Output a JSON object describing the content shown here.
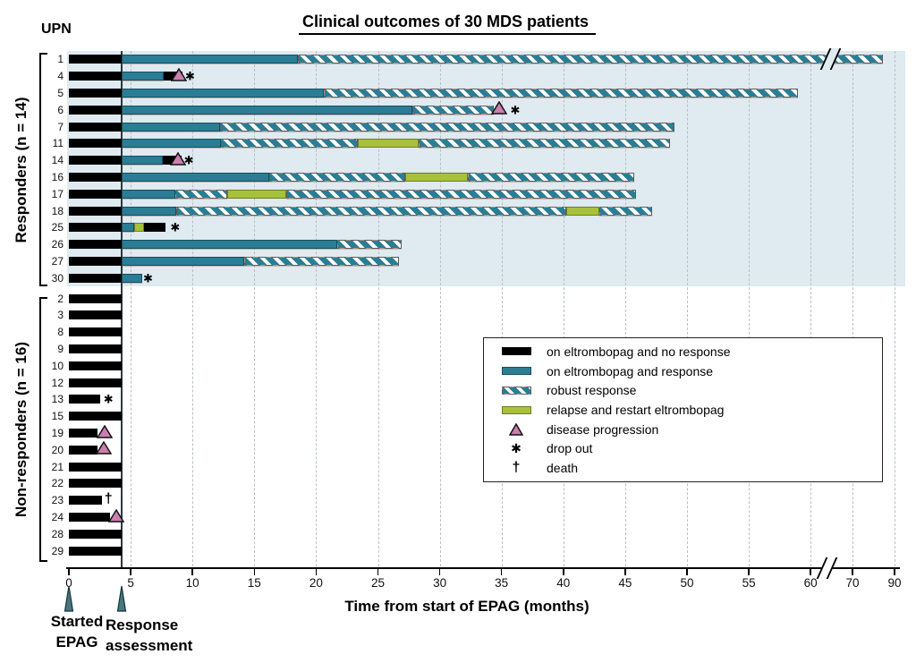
{
  "colors": {
    "teal": "#2a7d94",
    "green": "#a8c13b",
    "pink": "#cb7fae",
    "panel": "#dfeaf1",
    "grid": "#b9bfc5",
    "arrow": "#45787c",
    "black": "#000000"
  },
  "symbols": {
    "star": "✱",
    "dagger": "†"
  },
  "chart_data": {
    "type": "swimmer-timeline",
    "title": "Clinical outcomes of 30 MDS patients",
    "y_axis_header": "UPN",
    "x_axis": {
      "label": "Time from start of EPAG (months)",
      "unit": "months",
      "ticks": [
        0,
        5,
        10,
        15,
        20,
        25,
        30,
        35,
        40,
        45,
        50,
        55,
        60,
        70,
        90
      ],
      "break_between": [
        60,
        70
      ],
      "break_at_month": 61.3,
      "grid": true
    },
    "groups": [
      {
        "label": "Responders (n = 14)",
        "n": 14
      },
      {
        "label": "Non-responders (n = 16)",
        "n": 16
      }
    ],
    "start_marker": {
      "label": "Started EPAG",
      "month": 0
    },
    "event_line": {
      "label": "Response assessment",
      "month": 4.3
    },
    "legend": [
      {
        "swatch": "black-bar",
        "label": "on eltrombopag and no response"
      },
      {
        "swatch": "teal-bar",
        "label": "on eltrombopag and response"
      },
      {
        "swatch": "striped-bar",
        "label": "robust response"
      },
      {
        "swatch": "green-bar",
        "label": "relapse and restart eltrombopag"
      },
      {
        "swatch": "triangle",
        "label": "disease progression"
      },
      {
        "swatch": "star",
        "label": "drop out"
      },
      {
        "swatch": "dagger",
        "label": "death"
      }
    ],
    "patients": [
      {
        "upn": "1",
        "group": 0,
        "segments": [
          {
            "type": "no_response",
            "start": 0,
            "end": 4.3
          },
          {
            "type": "response",
            "start": 4.3,
            "end": 18.5
          },
          {
            "type": "robust",
            "start": 18.5,
            "end": 84.5
          }
        ],
        "markers": [
          {
            "type": "break",
            "month": 61.6
          }
        ]
      },
      {
        "upn": "4",
        "group": 0,
        "segments": [
          {
            "type": "no_response",
            "start": 0,
            "end": 4.3
          },
          {
            "type": "response",
            "start": 4.3,
            "end": 7.7
          },
          {
            "type": "no_response",
            "start": 7.7,
            "end": 9.2
          }
        ],
        "markers": [
          {
            "type": "triangle",
            "month": 8.9
          },
          {
            "type": "star",
            "month": 9.8
          }
        ]
      },
      {
        "upn": "5",
        "group": 0,
        "segments": [
          {
            "type": "no_response",
            "start": 0,
            "end": 4.3
          },
          {
            "type": "response",
            "start": 4.3,
            "end": 20.6
          },
          {
            "type": "robust",
            "start": 20.6,
            "end": 59
          }
        ],
        "markers": []
      },
      {
        "upn": "6",
        "group": 0,
        "segments": [
          {
            "type": "no_response",
            "start": 0,
            "end": 4.3
          },
          {
            "type": "response",
            "start": 4.3,
            "end": 27.8
          },
          {
            "type": "robust",
            "start": 27.8,
            "end": 34.4
          }
        ],
        "markers": [
          {
            "type": "triangle",
            "month": 34.8
          },
          {
            "type": "star",
            "month": 36.1
          }
        ]
      },
      {
        "upn": "7",
        "group": 0,
        "segments": [
          {
            "type": "no_response",
            "start": 0,
            "end": 4.3
          },
          {
            "type": "response",
            "start": 4.3,
            "end": 12.2
          },
          {
            "type": "robust",
            "start": 12.2,
            "end": 49
          }
        ],
        "markers": []
      },
      {
        "upn": "11",
        "group": 0,
        "segments": [
          {
            "type": "no_response",
            "start": 0,
            "end": 4.3
          },
          {
            "type": "response",
            "start": 4.3,
            "end": 12.3
          },
          {
            "type": "robust",
            "start": 12.3,
            "end": 23.4
          },
          {
            "type": "relapse",
            "start": 23.4,
            "end": 28.3
          },
          {
            "type": "robust",
            "start": 28.3,
            "end": 48.6
          }
        ],
        "markers": []
      },
      {
        "upn": "14",
        "group": 0,
        "segments": [
          {
            "type": "no_response",
            "start": 0,
            "end": 4.3
          },
          {
            "type": "response",
            "start": 4.3,
            "end": 7.6
          },
          {
            "type": "no_response",
            "start": 7.6,
            "end": 9.1
          }
        ],
        "markers": [
          {
            "type": "triangle",
            "month": 8.8
          },
          {
            "type": "star",
            "month": 9.7
          }
        ]
      },
      {
        "upn": "16",
        "group": 0,
        "segments": [
          {
            "type": "no_response",
            "start": 0,
            "end": 4.3
          },
          {
            "type": "response",
            "start": 4.3,
            "end": 16.2
          },
          {
            "type": "robust",
            "start": 16.2,
            "end": 27.2
          },
          {
            "type": "relapse",
            "start": 27.2,
            "end": 32.3
          },
          {
            "type": "robust",
            "start": 32.3,
            "end": 45.7
          }
        ],
        "markers": []
      },
      {
        "upn": "17",
        "group": 0,
        "segments": [
          {
            "type": "no_response",
            "start": 0,
            "end": 4.3
          },
          {
            "type": "response",
            "start": 4.3,
            "end": 8.6
          },
          {
            "type": "robust",
            "start": 8.6,
            "end": 12.8
          },
          {
            "type": "relapse",
            "start": 12.8,
            "end": 17.6
          },
          {
            "type": "robust",
            "start": 17.6,
            "end": 45.9
          }
        ],
        "markers": []
      },
      {
        "upn": "18",
        "group": 0,
        "segments": [
          {
            "type": "no_response",
            "start": 0,
            "end": 4.3
          },
          {
            "type": "response",
            "start": 4.3,
            "end": 8.7
          },
          {
            "type": "robust",
            "start": 8.7,
            "end": 40.2
          },
          {
            "type": "relapse",
            "start": 40.2,
            "end": 42.9
          },
          {
            "type": "robust",
            "start": 42.9,
            "end": 47.2
          }
        ],
        "markers": []
      },
      {
        "upn": "25",
        "group": 0,
        "segments": [
          {
            "type": "no_response",
            "start": 0,
            "end": 4.3
          },
          {
            "type": "response",
            "start": 4.3,
            "end": 5.3
          },
          {
            "type": "relapse",
            "start": 5.3,
            "end": 6.1
          },
          {
            "type": "no_response",
            "start": 6.1,
            "end": 7.8
          }
        ],
        "markers": [
          {
            "type": "star",
            "month": 8.6
          }
        ]
      },
      {
        "upn": "26",
        "group": 0,
        "segments": [
          {
            "type": "no_response",
            "start": 0,
            "end": 4.3
          },
          {
            "type": "response",
            "start": 4.3,
            "end": 21.7
          },
          {
            "type": "robust",
            "start": 21.7,
            "end": 26.9
          }
        ],
        "markers": []
      },
      {
        "upn": "27",
        "group": 0,
        "segments": [
          {
            "type": "no_response",
            "start": 0,
            "end": 4.3
          },
          {
            "type": "response",
            "start": 4.3,
            "end": 14.2
          },
          {
            "type": "robust",
            "start": 14.2,
            "end": 26.7
          }
        ],
        "markers": []
      },
      {
        "upn": "30",
        "group": 0,
        "segments": [
          {
            "type": "no_response",
            "start": 0,
            "end": 4.3
          },
          {
            "type": "response",
            "start": 4.3,
            "end": 5.9
          }
        ],
        "markers": [
          {
            "type": "star",
            "month": 6.4
          }
        ]
      },
      {
        "upn": "2",
        "group": 1,
        "segments": [
          {
            "type": "no_response",
            "start": 0,
            "end": 4.3
          }
        ],
        "markers": []
      },
      {
        "upn": "3",
        "group": 1,
        "segments": [
          {
            "type": "no_response",
            "start": 0,
            "end": 4.3
          }
        ],
        "markers": []
      },
      {
        "upn": "8",
        "group": 1,
        "segments": [
          {
            "type": "no_response",
            "start": 0,
            "end": 4.3
          }
        ],
        "markers": []
      },
      {
        "upn": "9",
        "group": 1,
        "segments": [
          {
            "type": "no_response",
            "start": 0,
            "end": 4.3
          }
        ],
        "markers": []
      },
      {
        "upn": "10",
        "group": 1,
        "segments": [
          {
            "type": "no_response",
            "start": 0,
            "end": 4.3
          }
        ],
        "markers": []
      },
      {
        "upn": "12",
        "group": 1,
        "segments": [
          {
            "type": "no_response",
            "start": 0,
            "end": 4.3
          }
        ],
        "markers": []
      },
      {
        "upn": "13",
        "group": 1,
        "segments": [
          {
            "type": "no_response",
            "start": 0,
            "end": 2.5
          }
        ],
        "markers": [
          {
            "type": "star",
            "month": 3.2
          }
        ]
      },
      {
        "upn": "15",
        "group": 1,
        "segments": [
          {
            "type": "no_response",
            "start": 0,
            "end": 4.3
          }
        ],
        "markers": []
      },
      {
        "upn": "19",
        "group": 1,
        "segments": [
          {
            "type": "no_response",
            "start": 0,
            "end": 2.3
          }
        ],
        "markers": [
          {
            "type": "triangle",
            "month": 2.9
          }
        ]
      },
      {
        "upn": "20",
        "group": 1,
        "segments": [
          {
            "type": "no_response",
            "start": 0,
            "end": 2.3
          }
        ],
        "markers": [
          {
            "type": "triangle",
            "month": 2.8
          }
        ]
      },
      {
        "upn": "21",
        "group": 1,
        "segments": [
          {
            "type": "no_response",
            "start": 0,
            "end": 4.3
          }
        ],
        "markers": []
      },
      {
        "upn": "22",
        "group": 1,
        "segments": [
          {
            "type": "no_response",
            "start": 0,
            "end": 4.3
          }
        ],
        "markers": []
      },
      {
        "upn": "23",
        "group": 1,
        "segments": [
          {
            "type": "no_response",
            "start": 0,
            "end": 2.7
          }
        ],
        "markers": [
          {
            "type": "dagger",
            "month": 3.2
          }
        ]
      },
      {
        "upn": "24",
        "group": 1,
        "segments": [
          {
            "type": "no_response",
            "start": 0,
            "end": 3.3
          }
        ],
        "markers": [
          {
            "type": "triangle",
            "month": 3.8
          }
        ]
      },
      {
        "upn": "28",
        "group": 1,
        "segments": [
          {
            "type": "no_response",
            "start": 0,
            "end": 4.3
          }
        ],
        "markers": []
      },
      {
        "upn": "29",
        "group": 1,
        "segments": [
          {
            "type": "no_response",
            "start": 0,
            "end": 4.3
          }
        ],
        "markers": []
      }
    ]
  }
}
